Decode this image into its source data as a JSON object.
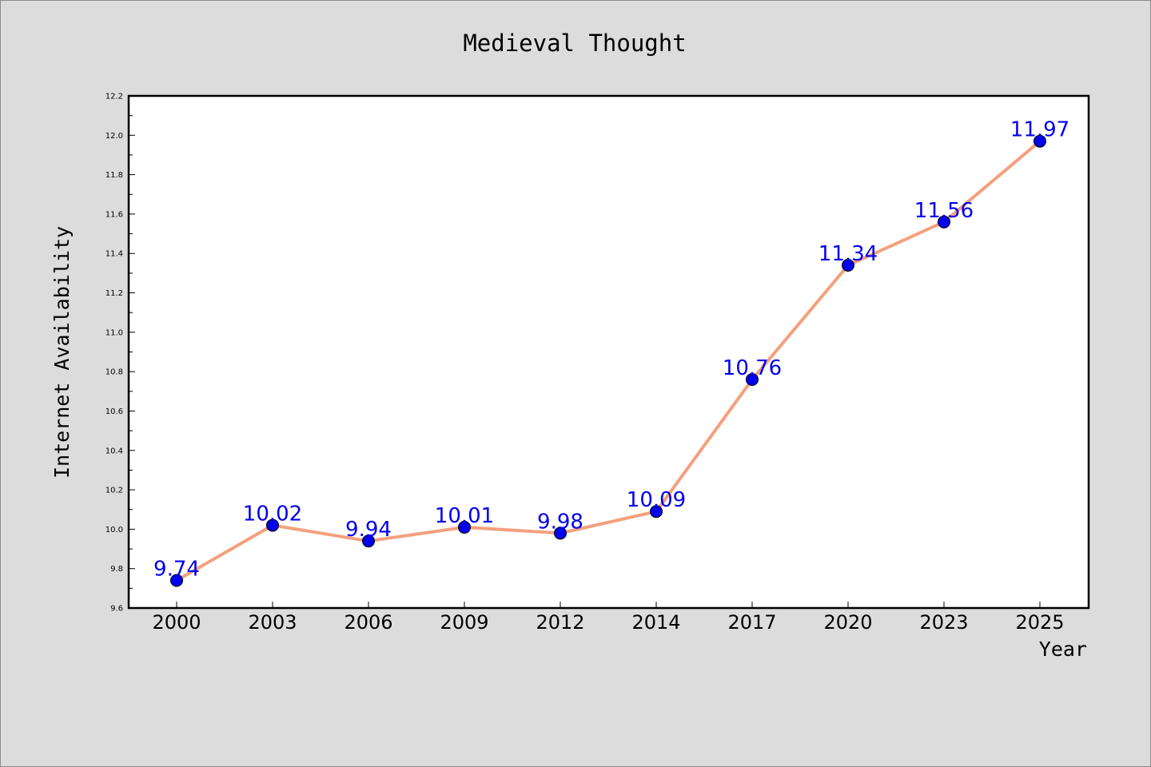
{
  "chart_data": {
    "type": "line",
    "title": "Medieval Thought",
    "xlabel": "Year",
    "ylabel": "Internet Availability",
    "categories": [
      "2000",
      "2003",
      "2006",
      "2009",
      "2012",
      "2014",
      "2017",
      "2020",
      "2023",
      "2025"
    ],
    "series": [
      {
        "values": [
          9.74,
          10.02,
          9.94,
          10.01,
          9.98,
          10.09,
          10.76,
          11.34,
          11.56,
          11.97
        ],
        "labels": [
          "9.74",
          "10.02",
          "9.94",
          "10.01",
          "9.98",
          "10.09",
          "10.76",
          "11.34",
          "11.56",
          "11.97"
        ]
      }
    ],
    "ylim": [
      9.6,
      12.2
    ],
    "yticks": [
      "9.6",
      "9.8",
      "10.0",
      "10.2",
      "10.4",
      "10.6",
      "10.8",
      "11.0",
      "11.2",
      "11.4",
      "11.6",
      "11.8",
      "12.0",
      "12.2"
    ],
    "grid": false,
    "legend": "none",
    "colors": {
      "line": "#f4a07e",
      "marker": "#0000ee",
      "label": "#0000ee",
      "background": "#dcdcdc",
      "plot_background": "#ffffff"
    }
  }
}
